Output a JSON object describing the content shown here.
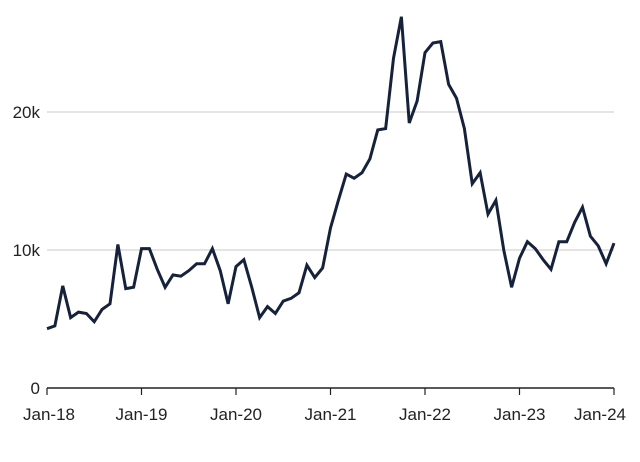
{
  "chart_data": {
    "type": "line",
    "title": "",
    "xlabel": "",
    "ylabel": "",
    "x_ticks": [
      "Jan-18",
      "Jan-19",
      "Jan-20",
      "Jan-21",
      "Jan-22",
      "Jan-23",
      "Jan-24"
    ],
    "y_ticks": [
      {
        "value": 0,
        "label": "0"
      },
      {
        "value": 10000,
        "label": "10k"
      },
      {
        "value": 20000,
        "label": "20k"
      }
    ],
    "ylim": [
      0,
      27500
    ],
    "grid": true,
    "line_color": "#16213b",
    "series": [
      {
        "x": [
          "2018-01",
          "2018-02",
          "2018-03",
          "2018-04",
          "2018-05",
          "2018-06",
          "2018-07",
          "2018-08",
          "2018-09",
          "2018-10",
          "2018-11",
          "2018-12",
          "2019-01",
          "2019-02",
          "2019-03",
          "2019-04",
          "2019-05",
          "2019-06",
          "2019-07",
          "2019-08",
          "2019-09",
          "2019-10",
          "2019-11",
          "2019-12",
          "2020-01",
          "2020-02",
          "2020-03",
          "2020-04",
          "2020-05",
          "2020-06",
          "2020-07",
          "2020-08",
          "2020-09",
          "2020-10",
          "2020-11",
          "2020-12",
          "2021-01",
          "2021-02",
          "2021-03",
          "2021-04",
          "2021-05",
          "2021-06",
          "2021-07",
          "2021-08",
          "2021-09",
          "2021-10",
          "2021-11",
          "2021-12",
          "2022-01",
          "2022-02",
          "2022-03",
          "2022-04",
          "2022-05",
          "2022-06",
          "2022-07",
          "2022-08",
          "2022-09",
          "2022-10",
          "2022-11",
          "2022-12",
          "2023-01",
          "2023-02",
          "2023-03",
          "2023-04",
          "2023-05",
          "2023-06",
          "2023-07",
          "2023-08",
          "2023-09",
          "2023-10",
          "2023-11",
          "2023-12",
          "2024-01"
        ],
        "values": [
          4300,
          4500,
          7400,
          5100,
          5500,
          5400,
          4800,
          5700,
          6100,
          10400,
          7200,
          7300,
          10100,
          10100,
          8600,
          7300,
          8200,
          8100,
          8500,
          9000,
          9000,
          10100,
          8500,
          6100,
          8800,
          9300,
          7300,
          5100,
          5900,
          5400,
          6300,
          6500,
          6900,
          8900,
          8000,
          8700,
          11600,
          13600,
          15500,
          15200,
          15600,
          16600,
          18700,
          18800,
          23900,
          26900,
          19200,
          20800,
          24300,
          25000,
          25100,
          22000,
          21000,
          18800,
          14800,
          15600,
          12600,
          13600,
          10000,
          7300,
          9400,
          10600,
          10100,
          9300,
          8600,
          10600,
          10600,
          12000,
          13100,
          11000,
          10300,
          9000,
          10500
        ]
      }
    ]
  }
}
